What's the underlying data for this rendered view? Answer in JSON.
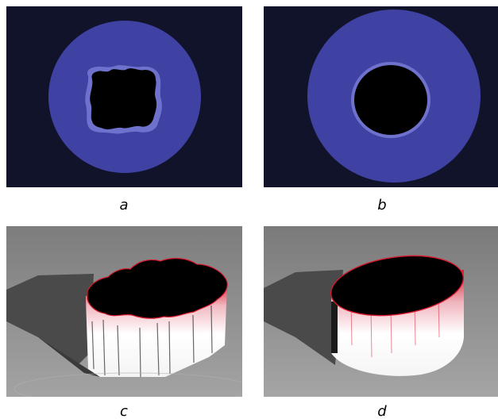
{
  "figure": {
    "panels": [
      {
        "label": "a",
        "view": "top",
        "shape": "irregular-hole"
      },
      {
        "label": "b",
        "view": "top",
        "shape": "circular-hole"
      },
      {
        "label": "c",
        "view": "perspective-3d",
        "shape": "irregular-column"
      },
      {
        "label": "d",
        "view": "perspective-3d",
        "shape": "elliptical-column"
      }
    ],
    "colors": {
      "background_dark": "#11132b",
      "disk_blue": "#3f42a3",
      "disk_rim": "#6e72cc",
      "hole_black": "#000000",
      "ground_gray": "#8f8f8f",
      "edge_red": "#d8182e"
    }
  }
}
